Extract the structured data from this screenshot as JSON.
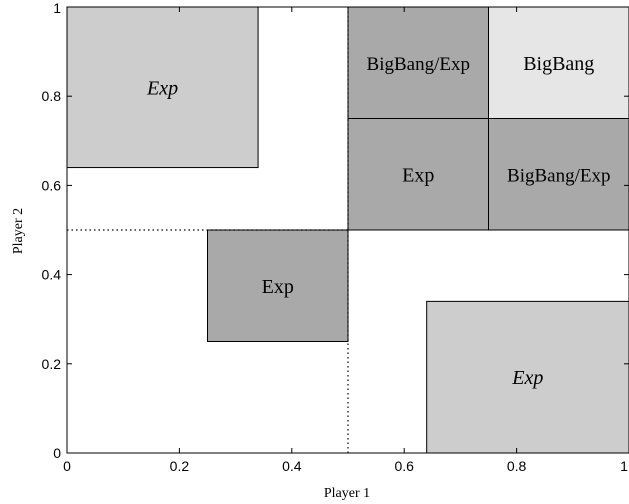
{
  "chart_data": {
    "type": "region",
    "xlabel": "Player 1",
    "ylabel": "Player 2",
    "xlim": [
      0,
      1
    ],
    "ylim": [
      0,
      1
    ],
    "xticks": [
      "0",
      "0.2",
      "0.4",
      "0.6",
      "0.8",
      "1"
    ],
    "yticks": [
      "0",
      "0.2",
      "0.4",
      "0.6",
      "0.8",
      "1"
    ],
    "grid": false,
    "colors": {
      "dark": "#a9a9a9",
      "light": "#cdcdcd",
      "lightest": "#e6e6e6"
    },
    "regions": [
      {
        "x0": 0.0,
        "x1": 0.34,
        "y0": 0.64,
        "y1": 1.0,
        "label": "Exp",
        "italic": true,
        "fill": "light"
      },
      {
        "x0": 0.64,
        "x1": 1.0,
        "y0": 0.0,
        "y1": 0.34,
        "label": "Exp",
        "italic": true,
        "fill": "light"
      },
      {
        "x0": 0.25,
        "x1": 0.5,
        "y0": 0.25,
        "y1": 0.5,
        "label": "Exp",
        "italic": false,
        "fill": "dark"
      },
      {
        "x0": 0.5,
        "x1": 0.75,
        "y0": 0.5,
        "y1": 0.75,
        "label": "Exp",
        "italic": false,
        "fill": "dark"
      },
      {
        "x0": 0.5,
        "x1": 0.75,
        "y0": 0.75,
        "y1": 1.0,
        "label": "BigBang/Exp",
        "italic": false,
        "fill": "dark"
      },
      {
        "x0": 0.75,
        "x1": 1.0,
        "y0": 0.5,
        "y1": 0.75,
        "label": "BigBang/Exp",
        "italic": false,
        "fill": "dark"
      },
      {
        "x0": 0.75,
        "x1": 1.0,
        "y0": 0.75,
        "y1": 1.0,
        "label": "BigBang",
        "italic": false,
        "fill": "lightest"
      }
    ],
    "dotted_lines": [
      {
        "orientation": "horizontal",
        "value": 0.5,
        "from": 0.0,
        "to": 0.5
      },
      {
        "orientation": "vertical",
        "value": 0.5,
        "from": 0.0,
        "to": 0.5
      }
    ]
  }
}
